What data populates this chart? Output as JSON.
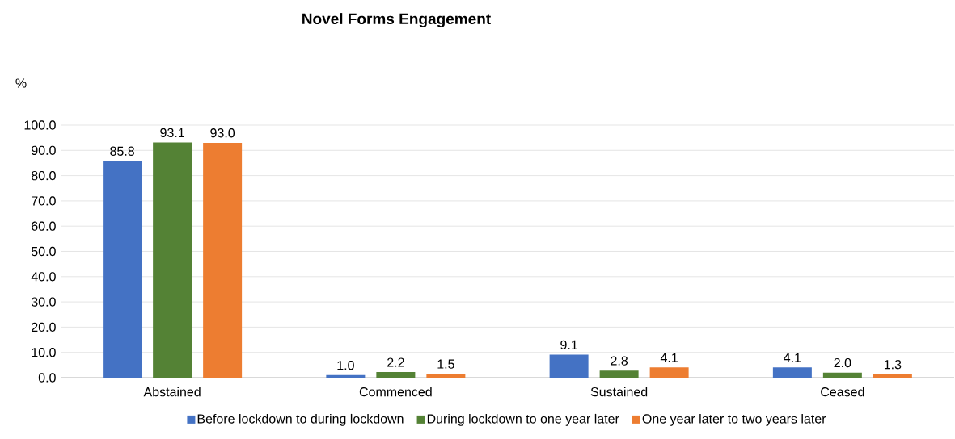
{
  "chart_data": {
    "type": "bar",
    "title": "Novel Forms Engagement",
    "ylabel": "%",
    "categories": [
      "Abstained",
      "Commenced",
      "Sustained",
      "Ceased"
    ],
    "series": [
      {
        "name": "Before lockdown to during lockdown",
        "color": "#4472c4",
        "values": [
          85.8,
          1.0,
          9.1,
          4.1
        ],
        "value_labels": [
          "85.8",
          "1.0",
          "9.1",
          "4.1"
        ]
      },
      {
        "name": "During lockdown to one year later",
        "color": "#548235",
        "values": [
          93.1,
          2.2,
          2.8,
          2.0
        ],
        "value_labels": [
          "93.1",
          "2.2",
          "2.8",
          "2.0"
        ]
      },
      {
        "name": "One year later to two years later",
        "color": "#ed7d31",
        "values": [
          93.0,
          1.5,
          4.1,
          1.3
        ],
        "value_labels": [
          "93.0",
          "1.5",
          "4.1",
          "1.3"
        ]
      }
    ],
    "ylim": [
      0,
      100
    ],
    "yticks": [
      {
        "value": 0,
        "label": "0.0"
      },
      {
        "value": 10,
        "label": "10.0"
      },
      {
        "value": 20,
        "label": "20.0"
      },
      {
        "value": 30,
        "label": "30.0"
      },
      {
        "value": 40,
        "label": "40.0"
      },
      {
        "value": 50,
        "label": "50.0"
      },
      {
        "value": 60,
        "label": "60.0"
      },
      {
        "value": 70,
        "label": "70.0"
      },
      {
        "value": 80,
        "label": "80.0"
      },
      {
        "value": 90,
        "label": "90.0"
      },
      {
        "value": 100,
        "label": "100.0"
      }
    ],
    "grid": "y",
    "legend": "bottom"
  }
}
